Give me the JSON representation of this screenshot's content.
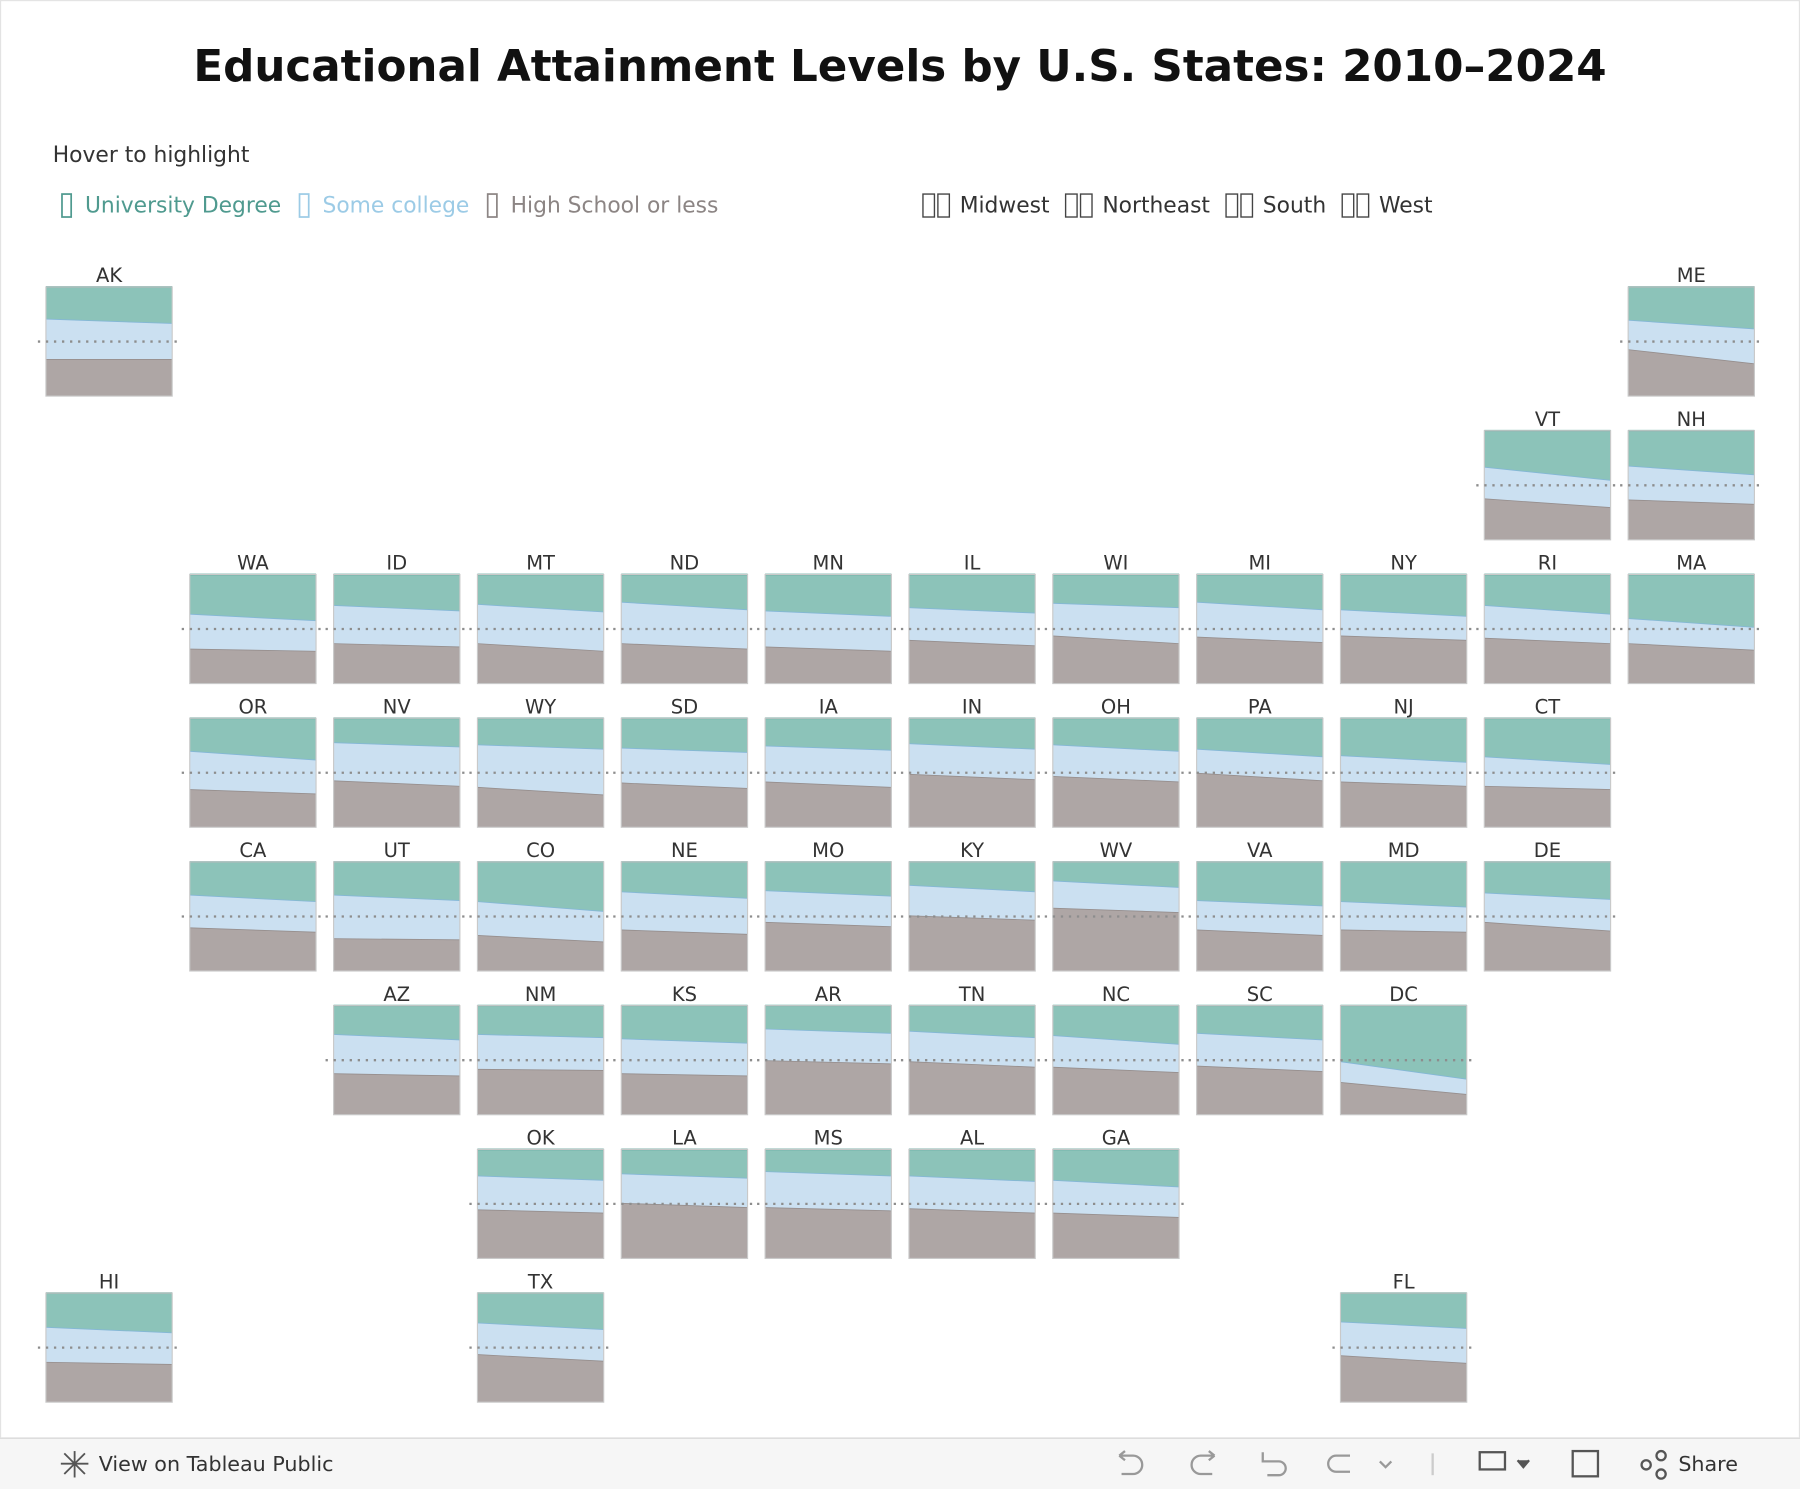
{
  "chart_data": {
    "type": "area-tile-map",
    "title": "Educational Attainment Levels by U.S. States: 2010–2024",
    "subtitle": "Hover to highlight",
    "x": [
      2010,
      2024
    ],
    "ylim": [
      0,
      100
    ],
    "reference_line": 50,
    "series": [
      {
        "name": "University Degree",
        "color": "#8cc3b9",
        "line": "#5ea79c",
        "legend_color": "#4f9a8f"
      },
      {
        "name": "Some college",
        "color": "#cbe0f1",
        "line": "#84b7d6",
        "legend_color": "#9ccbe6"
      },
      {
        "name": "High School or less",
        "color": "#aea6a5",
        "line": "#968e8d",
        "legend_color": "#8c8584"
      }
    ],
    "regions": [
      "Midwest",
      "Northeast",
      "South",
      "West"
    ],
    "states": [
      {
        "name": "AK",
        "values": [
          [
            29,
            33
          ],
          [
            37,
            33
          ],
          [
            34,
            34
          ]
        ]
      },
      {
        "name": "ME",
        "values": [
          [
            30,
            38
          ],
          [
            27,
            32
          ],
          [
            43,
            30
          ]
        ]
      },
      {
        "name": "VT",
        "values": [
          [
            33,
            45
          ],
          [
            29,
            25
          ],
          [
            38,
            30
          ]
        ]
      },
      {
        "name": "NH",
        "values": [
          [
            32,
            40
          ],
          [
            31,
            27
          ],
          [
            37,
            33
          ]
        ]
      },
      {
        "name": "WA",
        "values": [
          [
            36,
            42
          ],
          [
            32,
            28
          ],
          [
            32,
            30
          ]
        ]
      },
      {
        "name": "ID",
        "values": [
          [
            28,
            33
          ],
          [
            35,
            33
          ],
          [
            37,
            34
          ]
        ]
      },
      {
        "name": "MT",
        "values": [
          [
            27,
            34
          ],
          [
            36,
            36
          ],
          [
            37,
            30
          ]
        ]
      },
      {
        "name": "ND",
        "values": [
          [
            25,
            32
          ],
          [
            38,
            36
          ],
          [
            37,
            32
          ]
        ]
      },
      {
        "name": "MN",
        "values": [
          [
            33,
            38
          ],
          [
            33,
            32
          ],
          [
            34,
            30
          ]
        ]
      },
      {
        "name": "IL",
        "values": [
          [
            30,
            35
          ],
          [
            30,
            30
          ],
          [
            40,
            35
          ]
        ]
      },
      {
        "name": "WI",
        "values": [
          [
            26,
            30
          ],
          [
            30,
            33
          ],
          [
            44,
            37
          ]
        ]
      },
      {
        "name": "MI",
        "values": [
          [
            25,
            32
          ],
          [
            32,
            30
          ],
          [
            43,
            38
          ]
        ]
      },
      {
        "name": "NY",
        "values": [
          [
            32,
            38
          ],
          [
            24,
            22
          ],
          [
            44,
            40
          ]
        ]
      },
      {
        "name": "RI",
        "values": [
          [
            28,
            36
          ],
          [
            30,
            27
          ],
          [
            42,
            37
          ]
        ]
      },
      {
        "name": "MA",
        "values": [
          [
            40,
            48
          ],
          [
            23,
            21
          ],
          [
            37,
            31
          ]
        ]
      },
      {
        "name": "OR",
        "values": [
          [
            30,
            38
          ],
          [
            35,
            31
          ],
          [
            35,
            31
          ]
        ]
      },
      {
        "name": "NV",
        "values": [
          [
            22,
            26
          ],
          [
            35,
            36
          ],
          [
            43,
            38
          ]
        ]
      },
      {
        "name": "WY",
        "values": [
          [
            24,
            28
          ],
          [
            39,
            42
          ],
          [
            37,
            30
          ]
        ]
      },
      {
        "name": "SD",
        "values": [
          [
            27,
            31
          ],
          [
            32,
            33
          ],
          [
            41,
            36
          ]
        ]
      },
      {
        "name": "IA",
        "values": [
          [
            25,
            29
          ],
          [
            33,
            34
          ],
          [
            42,
            37
          ]
        ]
      },
      {
        "name": "IN",
        "values": [
          [
            23,
            28
          ],
          [
            28,
            28
          ],
          [
            49,
            44
          ]
        ]
      },
      {
        "name": "OH",
        "values": [
          [
            24,
            30
          ],
          [
            29,
            28
          ],
          [
            47,
            42
          ]
        ]
      },
      {
        "name": "PA",
        "values": [
          [
            28,
            35
          ],
          [
            22,
            22
          ],
          [
            50,
            43
          ]
        ]
      },
      {
        "name": "NJ",
        "values": [
          [
            34,
            40
          ],
          [
            24,
            22
          ],
          [
            42,
            38
          ]
        ]
      },
      {
        "name": "CT",
        "values": [
          [
            35,
            42
          ],
          [
            27,
            23
          ],
          [
            38,
            35
          ]
        ]
      },
      {
        "name": "CA",
        "values": [
          [
            30,
            36
          ],
          [
            30,
            28
          ],
          [
            40,
            36
          ]
        ]
      },
      {
        "name": "UT",
        "values": [
          [
            30,
            35
          ],
          [
            40,
            36
          ],
          [
            30,
            29
          ]
        ]
      },
      {
        "name": "CO",
        "values": [
          [
            36,
            45
          ],
          [
            31,
            28
          ],
          [
            33,
            27
          ]
        ]
      },
      {
        "name": "NE",
        "values": [
          [
            27,
            33
          ],
          [
            35,
            33
          ],
          [
            38,
            34
          ]
        ]
      },
      {
        "name": "MO",
        "values": [
          [
            26,
            31
          ],
          [
            29,
            28
          ],
          [
            45,
            41
          ]
        ]
      },
      {
        "name": "KY",
        "values": [
          [
            21,
            27
          ],
          [
            28,
            26
          ],
          [
            51,
            47
          ]
        ]
      },
      {
        "name": "WV",
        "values": [
          [
            17,
            23
          ],
          [
            25,
            23
          ],
          [
            58,
            54
          ]
        ]
      },
      {
        "name": "VA",
        "values": [
          [
            35,
            40
          ],
          [
            27,
            27
          ],
          [
            38,
            33
          ]
        ]
      },
      {
        "name": "MD",
        "values": [
          [
            36,
            41
          ],
          [
            26,
            23
          ],
          [
            38,
            36
          ]
        ]
      },
      {
        "name": "DE",
        "values": [
          [
            28,
            34
          ],
          [
            27,
            29
          ],
          [
            45,
            37
          ]
        ]
      },
      {
        "name": "AZ",
        "values": [
          [
            26,
            31
          ],
          [
            36,
            33
          ],
          [
            38,
            36
          ]
        ]
      },
      {
        "name": "NM",
        "values": [
          [
            26,
            29
          ],
          [
            32,
            30
          ],
          [
            42,
            41
          ]
        ]
      },
      {
        "name": "KS",
        "values": [
          [
            30,
            34
          ],
          [
            32,
            30
          ],
          [
            38,
            36
          ]
        ]
      },
      {
        "name": "AR",
        "values": [
          [
            21,
            25
          ],
          [
            29,
            28
          ],
          [
            50,
            47
          ]
        ]
      },
      {
        "name": "TN",
        "values": [
          [
            23,
            29
          ],
          [
            28,
            27
          ],
          [
            49,
            44
          ]
        ]
      },
      {
        "name": "NC",
        "values": [
          [
            27,
            35
          ],
          [
            29,
            26
          ],
          [
            44,
            39
          ]
        ]
      },
      {
        "name": "SC",
        "values": [
          [
            25,
            31
          ],
          [
            30,
            29
          ],
          [
            45,
            40
          ]
        ]
      },
      {
        "name": "DC",
        "values": [
          [
            51,
            67
          ],
          [
            19,
            14
          ],
          [
            30,
            19
          ]
        ]
      },
      {
        "name": "OK",
        "values": [
          [
            24,
            28
          ],
          [
            31,
            30
          ],
          [
            45,
            42
          ]
        ]
      },
      {
        "name": "LA",
        "values": [
          [
            22,
            26
          ],
          [
            27,
            27
          ],
          [
            51,
            47
          ]
        ]
      },
      {
        "name": "MS",
        "values": [
          [
            20,
            24
          ],
          [
            33,
            32
          ],
          [
            47,
            44
          ]
        ]
      },
      {
        "name": "AL",
        "values": [
          [
            24,
            29
          ],
          [
            30,
            29
          ],
          [
            46,
            42
          ]
        ]
      },
      {
        "name": "GA",
        "values": [
          [
            28,
            34
          ],
          [
            30,
            28
          ],
          [
            42,
            38
          ]
        ]
      },
      {
        "name": "HI",
        "values": [
          [
            31,
            36
          ],
          [
            32,
            29
          ],
          [
            37,
            35
          ]
        ]
      },
      {
        "name": "TX",
        "values": [
          [
            27,
            33
          ],
          [
            29,
            29
          ],
          [
            44,
            38
          ]
        ]
      },
      {
        "name": "FL",
        "values": [
          [
            26,
            32
          ],
          [
            31,
            32
          ],
          [
            43,
            36
          ]
        ]
      }
    ]
  },
  "footer": {
    "link": "View on Tableau Public",
    "share": "Share"
  }
}
